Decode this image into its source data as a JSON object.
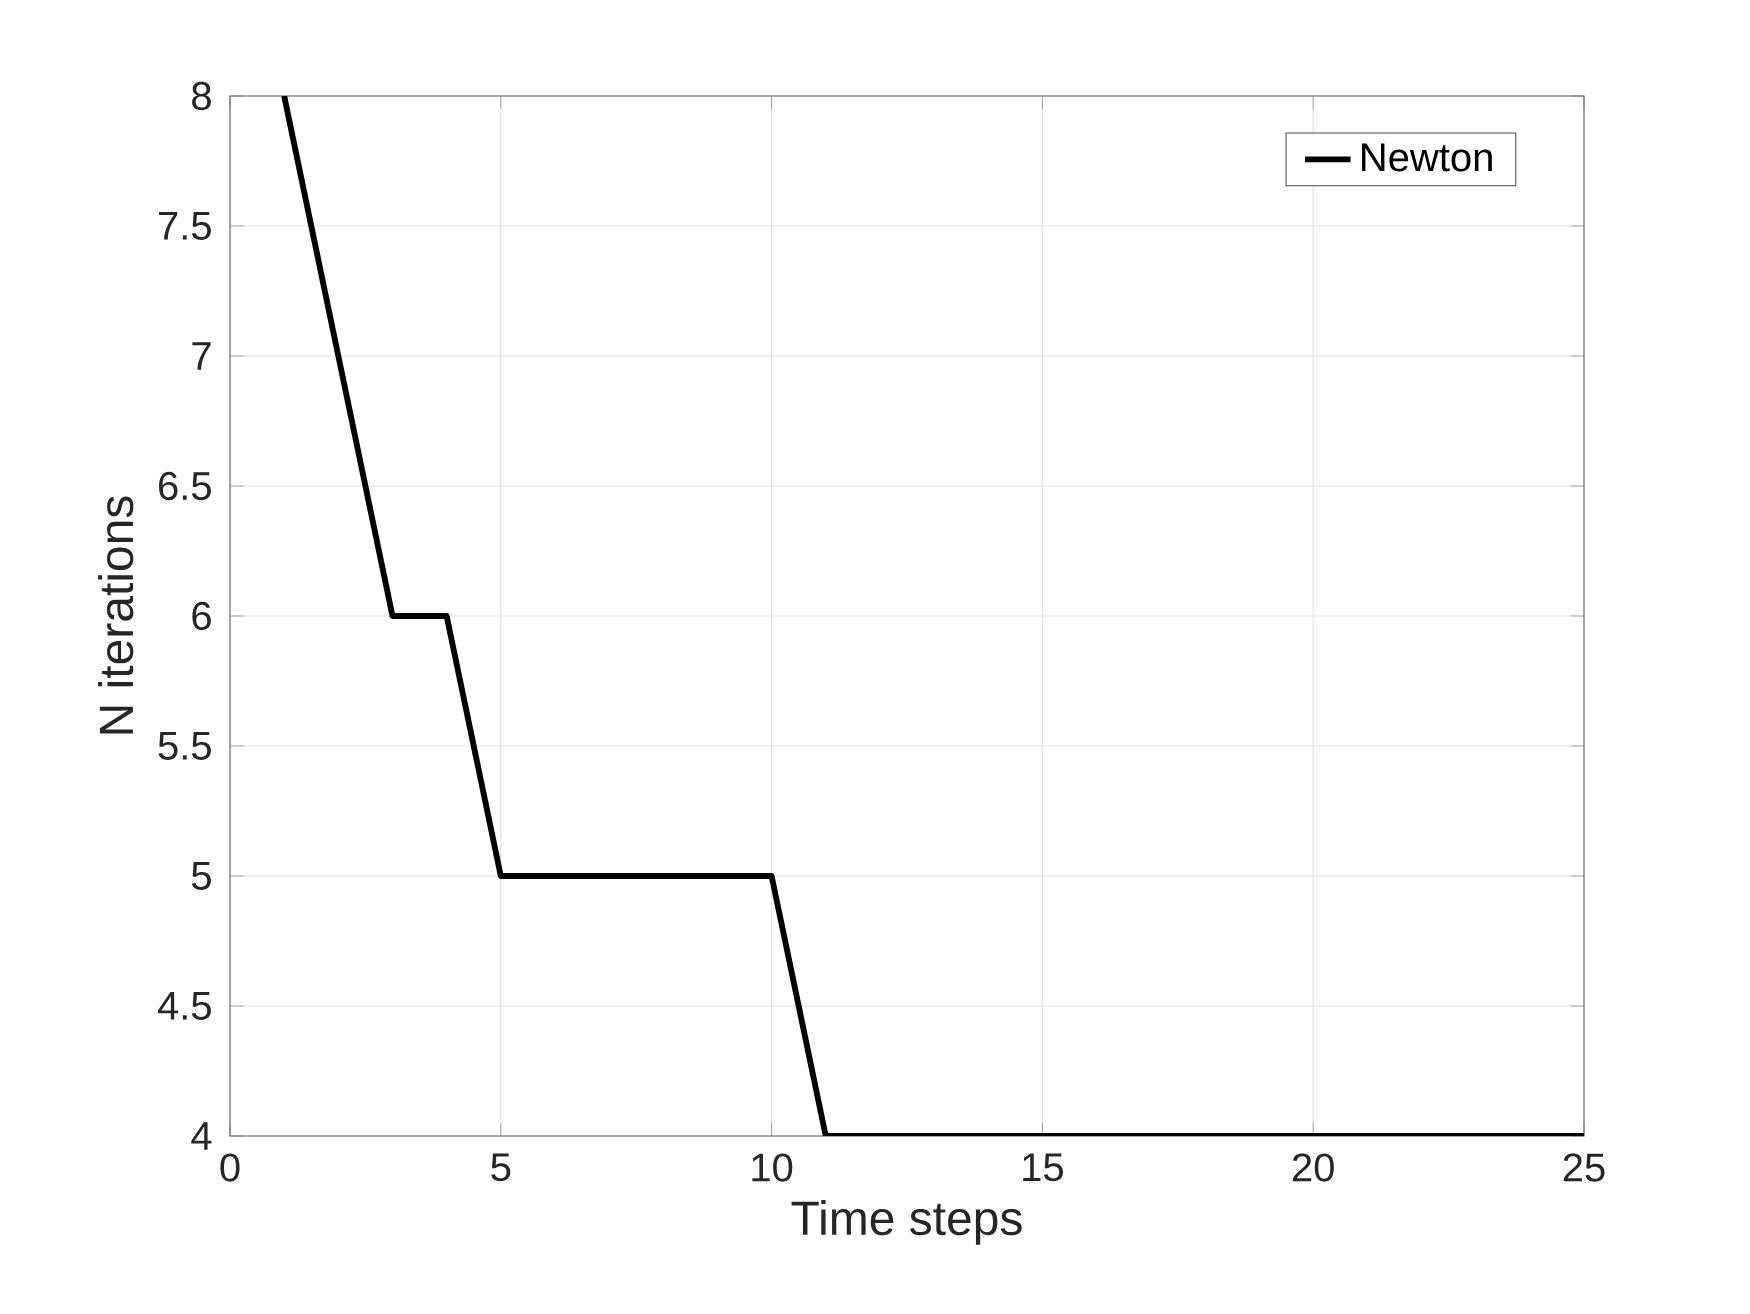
{
  "chart_data": {
    "type": "line",
    "xlabel": "Time steps",
    "ylabel": "N iterations",
    "x": [
      1,
      2,
      3,
      4,
      5,
      6,
      7,
      8,
      9,
      10,
      11,
      12,
      13,
      14,
      15,
      16,
      17,
      18,
      19,
      20,
      21,
      22,
      23,
      24,
      25
    ],
    "series": [
      {
        "name": "Newton",
        "color": "#000000",
        "values": [
          8,
          7,
          6,
          6,
          5,
          5,
          5,
          5,
          5,
          5,
          4,
          4,
          4,
          4,
          4,
          4,
          4,
          4,
          4,
          4,
          4,
          4,
          4,
          4,
          4
        ]
      }
    ],
    "xlim": [
      0,
      25
    ],
    "ylim": [
      4,
      8
    ],
    "xticks": [
      0,
      5,
      10,
      15,
      20,
      25
    ],
    "yticks": [
      4,
      4.5,
      5,
      5.5,
      6,
      6.5,
      7,
      7.5,
      8
    ],
    "grid": true,
    "legend": "top right",
    "marker": "none",
    "line_style": "solid"
  }
}
